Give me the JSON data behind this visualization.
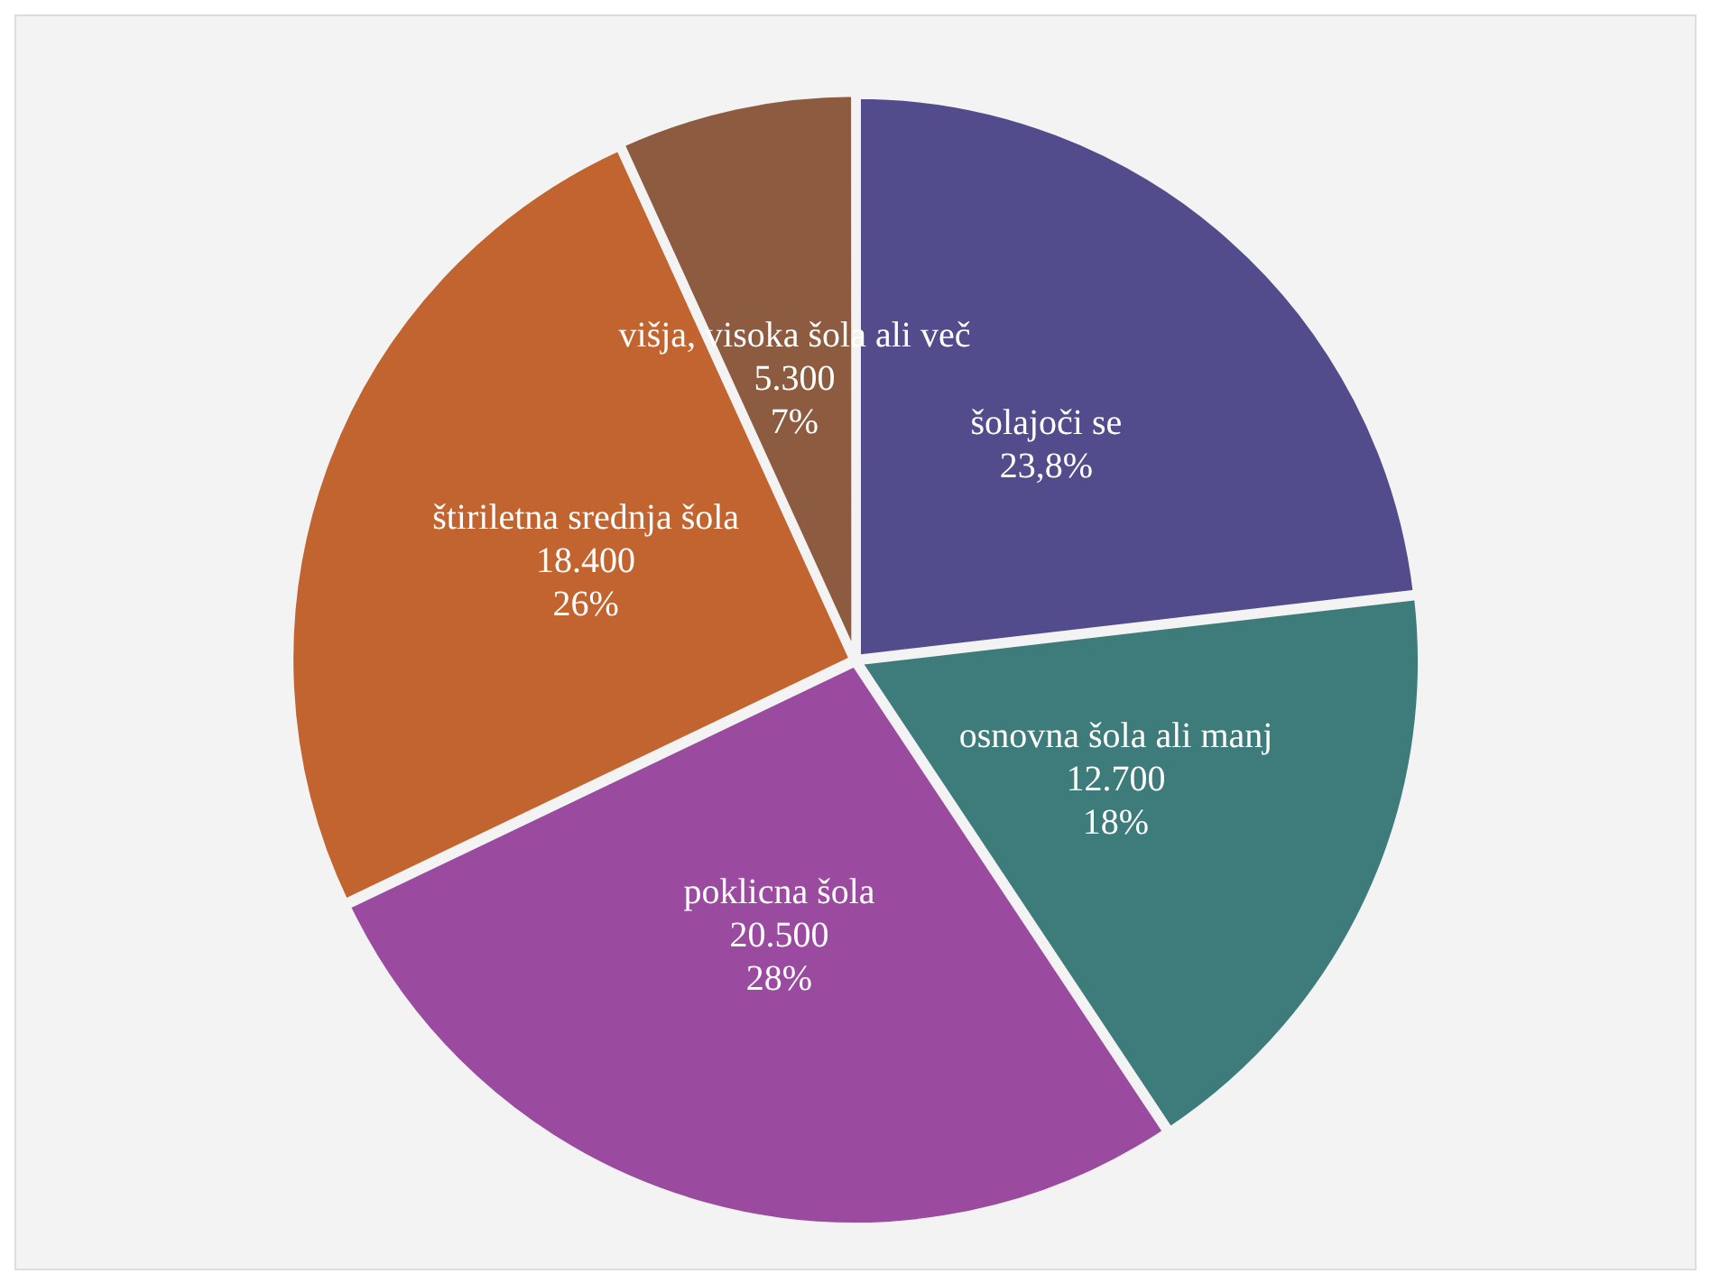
{
  "chart_data": {
    "type": "pie",
    "categories": [
      "šolajoči se",
      "osnovna šola ali manj",
      "poklicna šola",
      "štiriletna srednja šola",
      "višja, visoka šola ali več"
    ],
    "values": [
      23.8,
      18,
      28,
      26,
      7
    ],
    "value_labels": [
      "23,8%",
      "12.700\n18%",
      "20.500\n28%",
      "18.400\n26%",
      "5.300\n7%"
    ],
    "colors": [
      "#534c8c",
      "#3e7b7b",
      "#9a4a9f",
      "#c2642f",
      "#8d5b40"
    ],
    "legend": false
  }
}
